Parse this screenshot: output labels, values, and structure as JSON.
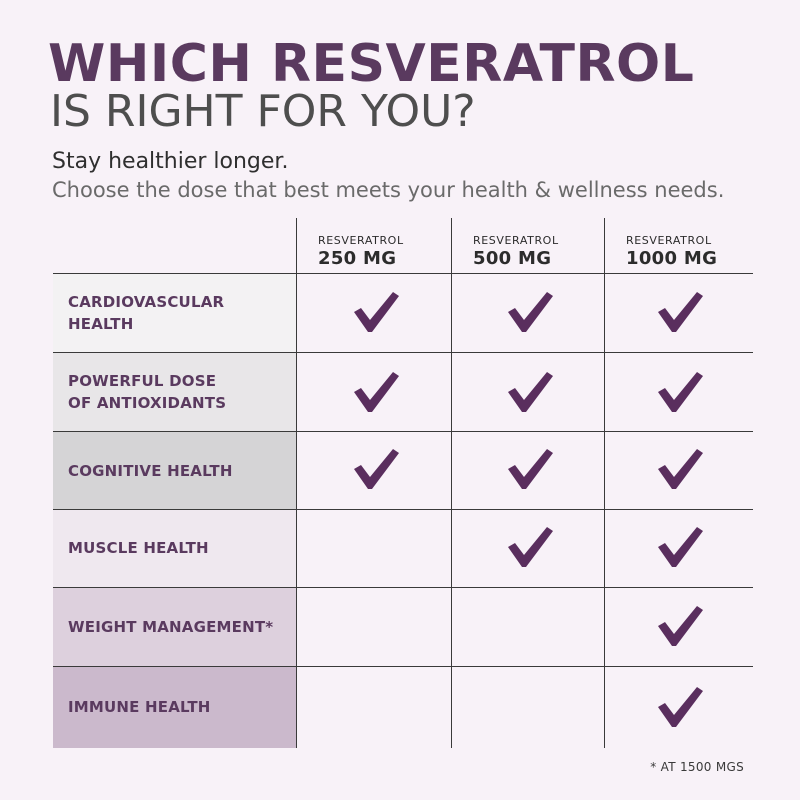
{
  "header": {
    "title_line1": "WHICH RESVERATROL",
    "title_line2": "IS RIGHT FOR YOU?",
    "subtitle": "Stay healthier longer.",
    "description": "Choose the dose that best meets your health & wellness needs."
  },
  "columns": [
    {
      "name": "RESVERATROL",
      "dose": "250 MG"
    },
    {
      "name": "RESVERATROL",
      "dose": "500 MG"
    },
    {
      "name": "RESVERATROL",
      "dose": "1000 MG"
    }
  ],
  "rows": [
    {
      "label": "CARDIOVASCULAR\nHEALTH",
      "checks": [
        true,
        true,
        true
      ]
    },
    {
      "label": "POWERFUL DOSE\nOF ANTIOXIDANTS",
      "checks": [
        true,
        true,
        true
      ]
    },
    {
      "label": "COGNITIVE HEALTH",
      "checks": [
        true,
        true,
        true
      ]
    },
    {
      "label": "MUSCLE HEALTH",
      "checks": [
        false,
        true,
        true
      ]
    },
    {
      "label": "WEIGHT MANAGEMENT*",
      "checks": [
        false,
        false,
        true
      ]
    },
    {
      "label": "IMMUNE HEALTH",
      "checks": [
        false,
        false,
        true
      ]
    }
  ],
  "footnote": "* AT 1500 MGS",
  "icons": {
    "check": "checkmark-icon"
  },
  "colors": {
    "accent": "#5a2e5e",
    "title": "#5a3a5f",
    "background": "#f8f2f8"
  }
}
